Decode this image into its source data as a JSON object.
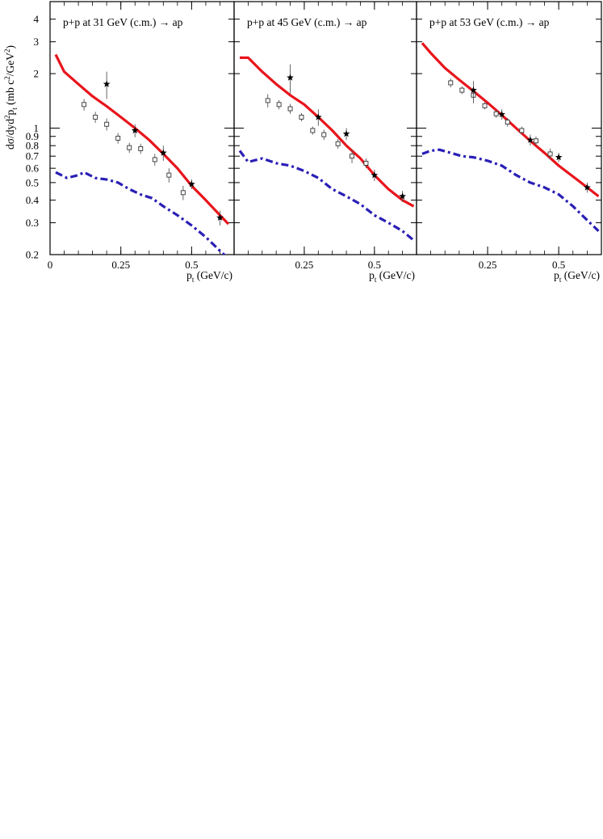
{
  "figure": {
    "ylabel_main": "dσ/dyd",
    "ylabel_sup1": "2",
    "ylabel_mid": "p",
    "ylabel_sub": "t",
    "ylabel_unit": " (mb c",
    "ylabel_sup2": "2",
    "ylabel_unit2": "/GeV",
    "ylabel_sup3": "2",
    "ylabel_end": ")",
    "xlabel_main": "p",
    "xlabel_sub": "t",
    "xlabel_unit": " (GeV/c)"
  },
  "chart_data": [
    {
      "type": "line",
      "title": "p+p at 31 GeV (c.m.) → ap",
      "xlabel": "pt (GeV/c)",
      "ylabel": "dσ/dyd2pt (mb c2/GeV2)",
      "xlim": [
        0,
        0.65
      ],
      "ylim": [
        0.2,
        5.0
      ],
      "yscale": "log",
      "xticks": [
        0,
        0.25,
        0.5
      ],
      "xtick_labels": [
        "0",
        "0.25",
        "0.5"
      ],
      "yticks": [
        0.2,
        0.3,
        0.4,
        0.5,
        0.6,
        0.7,
        0.8,
        0.9,
        1,
        2,
        3,
        4
      ],
      "ytick_labels": [
        "0.2",
        "0.3",
        "0.4",
        "0.5",
        "0.6",
        "0.7",
        "0.8",
        "0.9",
        "1",
        "2",
        "3",
        "4"
      ],
      "grid": false,
      "lines": [
        {
          "style": "solid",
          "color": "#e8141c",
          "x": [
            0.02,
            0.05,
            0.1,
            0.15,
            0.2,
            0.25,
            0.3,
            0.35,
            0.4,
            0.45,
            0.5,
            0.55,
            0.6,
            0.63
          ],
          "y": [
            2.55,
            2.05,
            1.75,
            1.5,
            1.32,
            1.15,
            1.0,
            0.86,
            0.72,
            0.6,
            0.48,
            0.4,
            0.33,
            0.295
          ]
        },
        {
          "style": "dashdot",
          "color": "#2a1fb5",
          "x": [
            0.02,
            0.06,
            0.1,
            0.12,
            0.16,
            0.2,
            0.24,
            0.28,
            0.32,
            0.36,
            0.4,
            0.45,
            0.5,
            0.55,
            0.6,
            0.63
          ],
          "y": [
            0.57,
            0.53,
            0.55,
            0.57,
            0.53,
            0.52,
            0.5,
            0.46,
            0.43,
            0.41,
            0.37,
            0.33,
            0.29,
            0.25,
            0.21,
            0.19
          ]
        }
      ],
      "points_open": {
        "x": [
          0.12,
          0.16,
          0.2,
          0.24,
          0.28,
          0.32,
          0.37,
          0.42,
          0.47
        ],
        "y": [
          1.35,
          1.15,
          1.05,
          0.88,
          0.78,
          0.77,
          0.67,
          0.55,
          0.44
        ],
        "err": [
          0.1,
          0.08,
          0.08,
          0.06,
          0.05,
          0.05,
          0.05,
          0.05,
          0.04
        ]
      },
      "points_star": {
        "x": [
          0.2,
          0.3,
          0.4,
          0.5,
          0.6
        ],
        "y": [
          1.75,
          0.97,
          0.73,
          0.49,
          0.32
        ],
        "err": [
          0.3,
          0.08,
          0.07,
          0.03,
          0.03
        ]
      }
    },
    {
      "type": "line",
      "title": "p+p at 45 GeV (c.m.) → ap",
      "xlabel": "pt (GeV/c)",
      "ylabel": "dσ/dyd2pt (mb c2/GeV2)",
      "xlim": [
        0,
        0.65
      ],
      "ylim": [
        0.2,
        5.0
      ],
      "yscale": "log",
      "xticks": [
        0.25,
        0.5
      ],
      "xtick_labels": [
        "0.25",
        "0.5"
      ],
      "grid": false,
      "lines": [
        {
          "style": "solid",
          "color": "#e8141c",
          "x": [
            0.02,
            0.05,
            0.1,
            0.15,
            0.2,
            0.25,
            0.3,
            0.35,
            0.4,
            0.45,
            0.5,
            0.55,
            0.6,
            0.64
          ],
          "y": [
            2.45,
            2.45,
            2.05,
            1.75,
            1.52,
            1.35,
            1.15,
            0.97,
            0.8,
            0.68,
            0.55,
            0.46,
            0.4,
            0.37
          ]
        },
        {
          "style": "dashdot",
          "color": "#2a1fb5",
          "x": [
            0.02,
            0.05,
            0.1,
            0.15,
            0.2,
            0.25,
            0.3,
            0.35,
            0.4,
            0.45,
            0.5,
            0.55,
            0.6,
            0.64
          ],
          "y": [
            0.75,
            0.65,
            0.68,
            0.64,
            0.62,
            0.58,
            0.53,
            0.46,
            0.42,
            0.38,
            0.33,
            0.3,
            0.27,
            0.24
          ]
        }
      ],
      "points_open": {
        "x": [
          0.12,
          0.16,
          0.2,
          0.24,
          0.28,
          0.32,
          0.37,
          0.42,
          0.47
        ],
        "y": [
          1.42,
          1.35,
          1.28,
          1.15,
          0.97,
          0.92,
          0.82,
          0.7,
          0.64
        ],
        "err": [
          0.12,
          0.08,
          0.08,
          0.06,
          0.05,
          0.06,
          0.05,
          0.06,
          0.04
        ]
      },
      "points_star": {
        "x": [
          0.2,
          0.3,
          0.4,
          0.5,
          0.6
        ],
        "y": [
          1.9,
          1.15,
          0.93,
          0.55,
          0.42
        ],
        "err": [
          0.35,
          0.12,
          0.07,
          0.04,
          0.03
        ]
      }
    },
    {
      "type": "line",
      "title": "p+p at 53 GeV (c.m.) → ap",
      "xlabel": "pt (GeV/c)",
      "ylabel": "dσ/dyd2pt (mb c2/GeV2)",
      "xlim": [
        0,
        0.65
      ],
      "ylim": [
        0.2,
        5.0
      ],
      "yscale": "log",
      "xticks": [
        0.25,
        0.5
      ],
      "xtick_labels": [
        "0.25",
        "0.5"
      ],
      "grid": false,
      "lines": [
        {
          "style": "solid",
          "color": "#e8141c",
          "x": [
            0.02,
            0.05,
            0.1,
            0.15,
            0.2,
            0.25,
            0.3,
            0.35,
            0.4,
            0.45,
            0.5,
            0.55,
            0.6,
            0.64
          ],
          "y": [
            2.95,
            2.6,
            2.15,
            1.85,
            1.6,
            1.38,
            1.18,
            1.0,
            0.85,
            0.73,
            0.62,
            0.54,
            0.47,
            0.42
          ]
        },
        {
          "style": "dashdot",
          "color": "#2a1fb5",
          "x": [
            0.02,
            0.05,
            0.08,
            0.12,
            0.16,
            0.2,
            0.25,
            0.3,
            0.35,
            0.4,
            0.45,
            0.5,
            0.55,
            0.6,
            0.64
          ],
          "y": [
            0.72,
            0.75,
            0.76,
            0.73,
            0.7,
            0.69,
            0.66,
            0.62,
            0.55,
            0.5,
            0.47,
            0.43,
            0.37,
            0.31,
            0.27
          ]
        }
      ],
      "points_open": {
        "x": [
          0.12,
          0.16,
          0.2,
          0.24,
          0.28,
          0.32,
          0.37,
          0.42,
          0.47
        ],
        "y": [
          1.78,
          1.62,
          1.52,
          1.33,
          1.2,
          1.08,
          0.97,
          0.85,
          0.72
        ],
        "err": [
          0.1,
          0.08,
          0.15,
          0.06,
          0.06,
          0.06,
          0.05,
          0.05,
          0.05
        ]
      },
      "points_star": {
        "x": [
          0.2,
          0.3,
          0.4,
          0.5,
          0.6
        ],
        "y": [
          1.62,
          1.19,
          0.86,
          0.69,
          0.47
        ],
        "err": [
          0.2,
          0.08,
          0.06,
          0.04,
          0.03
        ]
      }
    }
  ]
}
